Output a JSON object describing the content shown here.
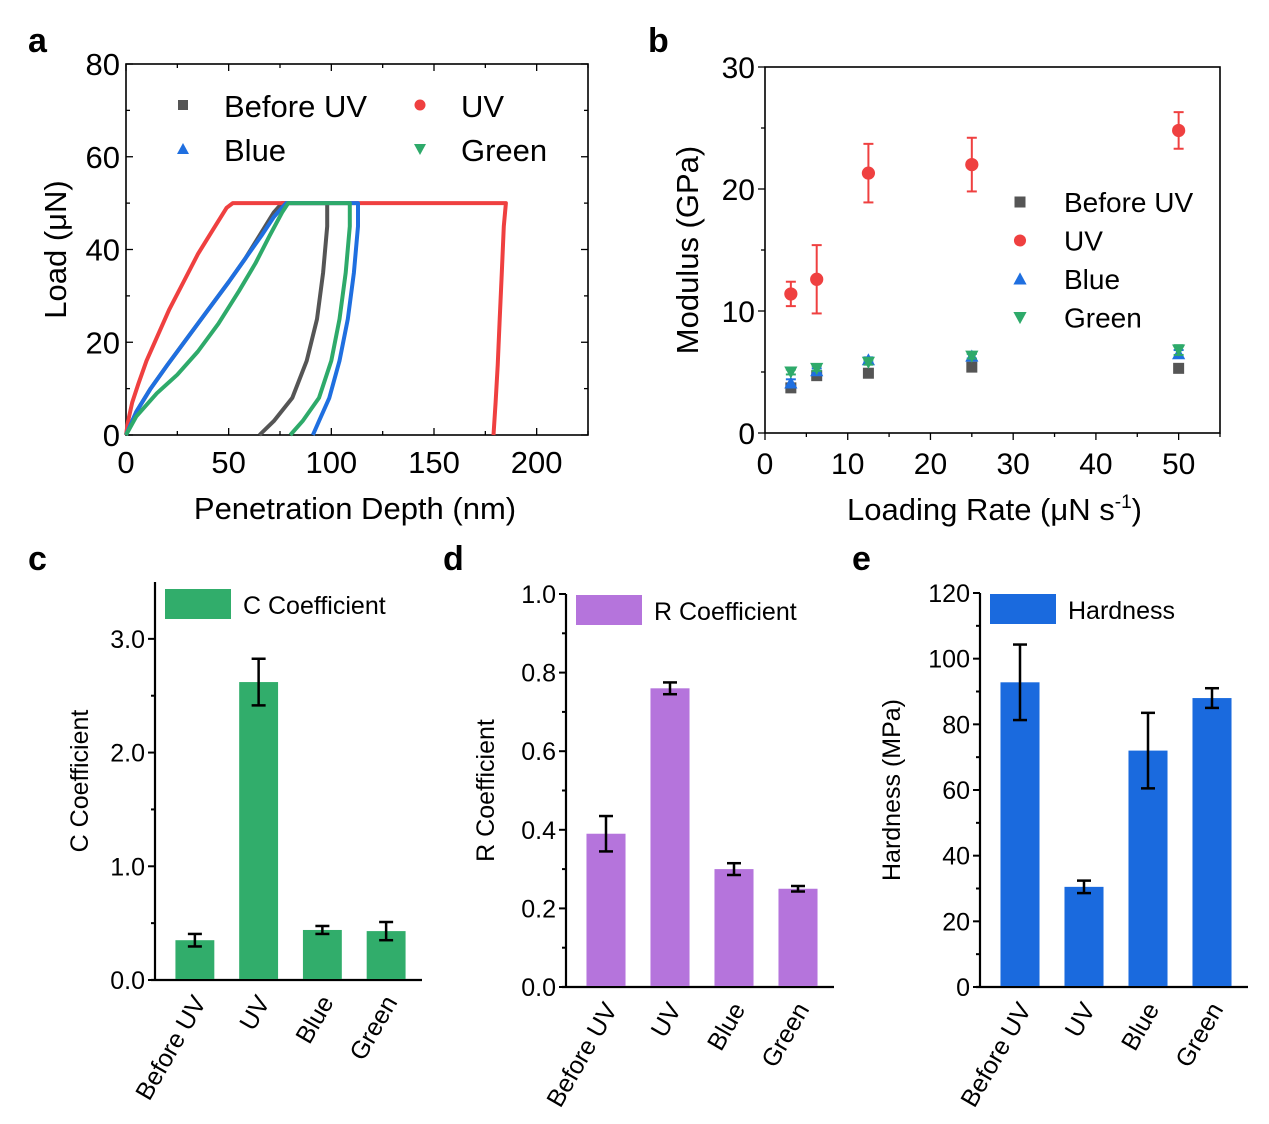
{
  "colors": {
    "before_uv": "#555555",
    "uv": "#ef4040",
    "blue": "#1f6fe0",
    "green": "#2eaa6a",
    "bar_c": "#31ad6b",
    "bar_d": "#b574dc",
    "bar_e": "#1a6ade",
    "axis": "#000000"
  },
  "chart_data": [
    {
      "panel": "a",
      "type": "line",
      "title": "",
      "xlabel": "Penetration Depth (nm)",
      "ylabel": "Load (μN)",
      "xlim": [
        0,
        225
      ],
      "ylim": [
        0,
        80
      ],
      "xticks": [
        "0",
        "50",
        "100",
        "150",
        "200"
      ],
      "yticks": [
        "0",
        "20",
        "40",
        "60",
        "80"
      ],
      "legend": {
        "placement": "top",
        "columns": 2
      },
      "series": [
        {
          "name": "Before UV",
          "key": "before_uv",
          "marker": "square",
          "points": [
            [
              0,
              0
            ],
            [
              5,
              5
            ],
            [
              12,
              10
            ],
            [
              20,
              15
            ],
            [
              30,
              21
            ],
            [
              40,
              27
            ],
            [
              50,
              33
            ],
            [
              58,
              38
            ],
            [
              65,
              43
            ],
            [
              72,
              48
            ],
            [
              76,
              50
            ],
            [
              98,
              50
            ],
            [
              98,
              45
            ],
            [
              96,
              35
            ],
            [
              93,
              25
            ],
            [
              88,
              16
            ],
            [
              81,
              8
            ],
            [
              72,
              3
            ],
            [
              65,
              0
            ]
          ]
        },
        {
          "name": "UV",
          "key": "uv",
          "marker": "circle",
          "points": [
            [
              0,
              0
            ],
            [
              1,
              3
            ],
            [
              3,
              7
            ],
            [
              6,
              11
            ],
            [
              10,
              16
            ],
            [
              15,
              21
            ],
            [
              21,
              27
            ],
            [
              28,
              33
            ],
            [
              35,
              39
            ],
            [
              42,
              44
            ],
            [
              49,
              49
            ],
            [
              52,
              50
            ],
            [
              185,
              50
            ],
            [
              184,
              45
            ],
            [
              183,
              35
            ],
            [
              182,
              25
            ],
            [
              181,
              15
            ],
            [
              180,
              7
            ],
            [
              179,
              0
            ]
          ]
        },
        {
          "name": "Blue",
          "key": "blue",
          "marker": "triangle-up",
          "points": [
            [
              0,
              0
            ],
            [
              5,
              5
            ],
            [
              12,
              10
            ],
            [
              20,
              15
            ],
            [
              30,
              21
            ],
            [
              40,
              27
            ],
            [
              50,
              33
            ],
            [
              58,
              38
            ],
            [
              66,
              43
            ],
            [
              72,
              47
            ],
            [
              78,
              50
            ],
            [
              113,
              50
            ],
            [
              113,
              45
            ],
            [
              111,
              35
            ],
            [
              108,
              25
            ],
            [
              104,
              16
            ],
            [
              99,
              8
            ],
            [
              94,
              3
            ],
            [
              91,
              0
            ]
          ]
        },
        {
          "name": "Green",
          "key": "green",
          "marker": "triangle-down",
          "points": [
            [
              0,
              0
            ],
            [
              5,
              4
            ],
            [
              15,
              9
            ],
            [
              25,
              13
            ],
            [
              35,
              18
            ],
            [
              45,
              24
            ],
            [
              55,
              31
            ],
            [
              63,
              37
            ],
            [
              70,
              43
            ],
            [
              76,
              48
            ],
            [
              79,
              50
            ],
            [
              109,
              50
            ],
            [
              109,
              45
            ],
            [
              107,
              35
            ],
            [
              104,
              25
            ],
            [
              100,
              16
            ],
            [
              94,
              8
            ],
            [
              86,
              3
            ],
            [
              80,
              0
            ]
          ]
        }
      ]
    },
    {
      "panel": "b",
      "type": "scatter",
      "title": "",
      "xlabel": "Loading Rate (μN s",
      "xlabel_sup": "-1",
      "xlabel_end": ")",
      "ylabel": "Modulus (GPa)",
      "xlim": [
        0,
        55
      ],
      "ylim": [
        0,
        30
      ],
      "xticks": [
        "0",
        "10",
        "20",
        "30",
        "40",
        "50"
      ],
      "yticks": [
        "0",
        "10",
        "20",
        "30"
      ],
      "legend": {
        "placement": "right"
      },
      "x": [
        3.125,
        6.25,
        12.5,
        25,
        50
      ],
      "series": [
        {
          "name": "Before UV",
          "key": "before_uv",
          "marker": "square",
          "values": [
            3.7,
            4.7,
            4.9,
            5.4,
            5.3
          ],
          "errors": [
            0.3,
            0.2,
            0.2,
            0.2,
            0.3
          ]
        },
        {
          "name": "UV",
          "key": "uv",
          "marker": "circle",
          "values": [
            11.4,
            12.6,
            21.3,
            22.0,
            24.8
          ],
          "errors": [
            1.0,
            2.8,
            2.4,
            2.2,
            1.5
          ]
        },
        {
          "name": "Blue",
          "key": "blue",
          "marker": "triangle-up",
          "values": [
            4.1,
            5.1,
            6.0,
            6.3,
            6.5
          ],
          "errors": [
            0.3,
            0.2,
            0.2,
            0.2,
            0.3
          ]
        },
        {
          "name": "Green",
          "key": "green",
          "marker": "triangle-down",
          "values": [
            5.0,
            5.3,
            5.8,
            6.3,
            6.8
          ],
          "errors": [
            0.2,
            0.2,
            0.2,
            0.2,
            0.4
          ]
        }
      ]
    },
    {
      "panel": "c",
      "type": "bar",
      "title": "",
      "xlabel": "",
      "ylabel": "C Coefficient",
      "ylim": [
        0,
        3.5
      ],
      "yticks": [
        "0.0",
        "1.0",
        "2.0",
        "3.0"
      ],
      "ytick_values": [
        0,
        1,
        2,
        3
      ],
      "legend": {
        "placement": "top-left",
        "label": "C Coefficient"
      },
      "categories": [
        "Before UV",
        "UV",
        "Blue",
        "Green"
      ],
      "values": [
        0.35,
        2.62,
        0.44,
        0.43
      ],
      "errors": [
        0.055,
        0.205,
        0.035,
        0.08
      ],
      "color_key": "bar_c"
    },
    {
      "panel": "d",
      "type": "bar",
      "title": "",
      "xlabel": "",
      "ylabel": "R Coefficient",
      "ylim": [
        0,
        1.0
      ],
      "yticks": [
        "0.0",
        "0.2",
        "0.4",
        "0.6",
        "0.8",
        "1.0"
      ],
      "ytick_values": [
        0,
        0.2,
        0.4,
        0.6,
        0.8,
        1.0
      ],
      "legend": {
        "placement": "top-left",
        "label": "R Coefficient"
      },
      "categories": [
        "Before UV",
        "UV",
        "Blue",
        "Green"
      ],
      "values": [
        0.39,
        0.76,
        0.3,
        0.25
      ],
      "errors": [
        0.045,
        0.015,
        0.015,
        0.007
      ],
      "color_key": "bar_d"
    },
    {
      "panel": "e",
      "type": "bar",
      "title": "",
      "xlabel": "",
      "ylabel": "Hardness (MPa)",
      "ylim": [
        0,
        120
      ],
      "yticks": [
        "0",
        "20",
        "40",
        "60",
        "80",
        "100",
        "120"
      ],
      "ytick_values": [
        0,
        20,
        40,
        60,
        80,
        100,
        120
      ],
      "legend": {
        "placement": "top-left",
        "label": "Hardness"
      },
      "categories": [
        "Before UV",
        "UV",
        "Blue",
        "Green"
      ],
      "values": [
        92.8,
        30.5,
        72.0,
        88.0
      ],
      "errors": [
        11.5,
        1.9,
        11.5,
        3.0
      ],
      "color_key": "bar_e"
    }
  ],
  "panel_labels": [
    "a",
    "b",
    "c",
    "d",
    "e"
  ]
}
